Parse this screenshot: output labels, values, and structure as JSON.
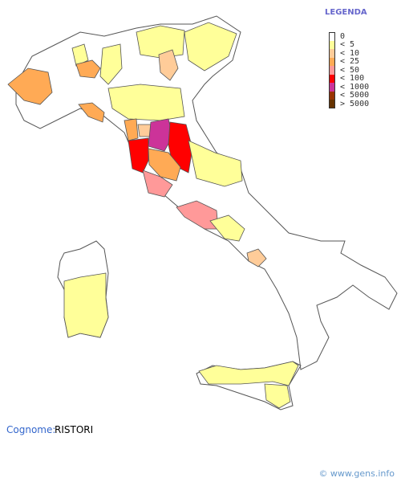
{
  "legend": {
    "title": "LEGENDA",
    "entries": [
      {
        "label": "0",
        "color": "#ffffff"
      },
      {
        "label": "< 5",
        "color": "#ffff99"
      },
      {
        "label": "< 10",
        "color": "#ffcc99"
      },
      {
        "label": "< 25",
        "color": "#ffaa55"
      },
      {
        "label": "< 50",
        "color": "#ff9999"
      },
      {
        "label": "< 100",
        "color": "#ff0000"
      },
      {
        "label": "< 1000",
        "color": "#cc3399"
      },
      {
        "label": "< 5000",
        "color": "#993300"
      },
      {
        "label": "> 5000",
        "color": "#663300"
      }
    ]
  },
  "surname": {
    "label": "Cognome:",
    "value": "RISTORI"
  },
  "footer": "© www.gens.info"
}
